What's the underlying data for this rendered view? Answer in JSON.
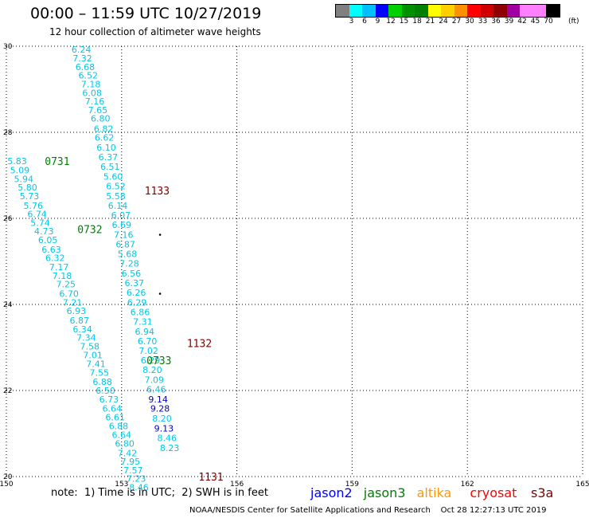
{
  "title": "00:00 – 11:59 UTC 10/27/2019",
  "subtitle": "12 hour collection of altimeter wave heights",
  "colorbar": {
    "labels": [
      "3",
      "6",
      "9",
      "12",
      "15",
      "18",
      "21",
      "24",
      "27",
      "30",
      "33",
      "36",
      "39",
      "42",
      "45",
      "70"
    ],
    "unit": "(ft)",
    "colors": [
      "#808080",
      "#00ffff",
      "#00c0ff",
      "#0000ff",
      "#00d000",
      "#009000",
      "#008000",
      "#ffff00",
      "#ffd000",
      "#ff9000",
      "#ff0000",
      "#d00000",
      "#900000",
      "#a000a0",
      "#ff80ff",
      "#ff80ff",
      "#000000"
    ]
  },
  "map": {
    "lon_min": 150,
    "lon_max": 165,
    "lat_min": 20,
    "lat_max": 30,
    "lon_ticks": [
      150,
      153,
      156,
      159,
      162,
      165
    ],
    "lat_ticks": [
      20,
      22,
      24,
      26,
      28,
      30
    ]
  },
  "tracks": [
    {
      "satellite": "jason3",
      "pass_label": "0731",
      "label_lon": 151.0,
      "label_lat": 27.33,
      "color": "#008000"
    },
    {
      "satellite": "jason3",
      "pass_label": "0732",
      "label_lon": 151.85,
      "label_lat": 25.75,
      "color": "#008000"
    },
    {
      "satellite": "jason3",
      "pass_label": "0733",
      "label_lon": 153.65,
      "label_lat": 22.7,
      "color": "#008000"
    },
    {
      "satellite": "cryosat",
      "pass_label": "1133",
      "label_lon": 153.6,
      "label_lat": 26.65,
      "color": "#800000"
    },
    {
      "satellite": "cryosat",
      "pass_label": "1132",
      "label_lon": 154.7,
      "label_lat": 23.1,
      "color": "#800000"
    },
    {
      "satellite": "cryosat",
      "pass_label": "1131",
      "label_lon": 155.0,
      "label_lat": 20.0,
      "color": "#800000"
    }
  ],
  "swh_obs": [
    {
      "v": "6.24",
      "lon": 151.95,
      "lat": 29.93,
      "c": "#00c8e6"
    },
    {
      "v": "7.32",
      "lon": 151.98,
      "lat": 29.72,
      "c": "#00c8e6"
    },
    {
      "v": "6.68",
      "lon": 152.05,
      "lat": 29.52,
      "c": "#00c8e6"
    },
    {
      "v": "6.52",
      "lon": 152.13,
      "lat": 29.32,
      "c": "#00c8e6"
    },
    {
      "v": "7.18",
      "lon": 152.2,
      "lat": 29.12,
      "c": "#00c8e6"
    },
    {
      "v": "6.08",
      "lon": 152.23,
      "lat": 28.92,
      "c": "#00c8e6"
    },
    {
      "v": "7.16",
      "lon": 152.3,
      "lat": 28.72,
      "c": "#00c8e6"
    },
    {
      "v": "7.65",
      "lon": 152.38,
      "lat": 28.52,
      "c": "#00c8e6"
    },
    {
      "v": "6.80",
      "lon": 152.45,
      "lat": 28.32,
      "c": "#00c8e6"
    },
    {
      "v": "6.82",
      "lon": 152.53,
      "lat": 28.08,
      "c": "#00c8e6"
    },
    {
      "v": "6.62",
      "lon": 152.55,
      "lat": 27.88,
      "c": "#00c8e6"
    },
    {
      "v": "6.10",
      "lon": 152.6,
      "lat": 27.65,
      "c": "#00c8e6"
    },
    {
      "v": "6.37",
      "lon": 152.65,
      "lat": 27.43,
      "c": "#00c8e6"
    },
    {
      "v": "6.51",
      "lon": 152.7,
      "lat": 27.2,
      "c": "#00c8e6"
    },
    {
      "v": "5.60",
      "lon": 152.78,
      "lat": 26.97,
      "c": "#00c8e6"
    },
    {
      "v": "6.52",
      "lon": 152.85,
      "lat": 26.75,
      "c": "#00c8e6"
    },
    {
      "v": "5.58",
      "lon": 152.85,
      "lat": 26.52,
      "c": "#00c8e6"
    },
    {
      "v": "6.14",
      "lon": 152.9,
      "lat": 26.3,
      "c": "#00c8e6"
    },
    {
      "v": "6.07",
      "lon": 152.98,
      "lat": 26.07,
      "c": "#00c8e6"
    },
    {
      "v": "6.69",
      "lon": 153.0,
      "lat": 25.85,
      "c": "#00c8e6"
    },
    {
      "v": "7.16",
      "lon": 153.05,
      "lat": 25.62,
      "c": "#00c8e6"
    },
    {
      "v": "6.87",
      "lon": 153.1,
      "lat": 25.4,
      "c": "#00c8e6"
    },
    {
      "v": "5.68",
      "lon": 153.15,
      "lat": 25.18,
      "c": "#00c8e6"
    },
    {
      "v": "7.28",
      "lon": 153.2,
      "lat": 24.95,
      "c": "#00c8e6"
    },
    {
      "v": "6.56",
      "lon": 153.25,
      "lat": 24.72,
      "c": "#00c8e6"
    },
    {
      "v": "6.37",
      "lon": 153.33,
      "lat": 24.5,
      "c": "#00c8e6"
    },
    {
      "v": "6.26",
      "lon": 153.38,
      "lat": 24.28,
      "c": "#00c8e6"
    },
    {
      "v": "6.29",
      "lon": 153.4,
      "lat": 24.05,
      "c": "#00c8e6"
    },
    {
      "v": "6.86",
      "lon": 153.48,
      "lat": 23.82,
      "c": "#00c8e6"
    },
    {
      "v": "7.31",
      "lon": 153.55,
      "lat": 23.6,
      "c": "#00c8e6"
    },
    {
      "v": "6.94",
      "lon": 153.6,
      "lat": 23.37,
      "c": "#00c8e6"
    },
    {
      "v": "6.70",
      "lon": 153.67,
      "lat": 23.15,
      "c": "#00c8e6"
    },
    {
      "v": "7.02",
      "lon": 153.7,
      "lat": 22.93,
      "c": "#00c8e6"
    },
    {
      "v": "6.29",
      "lon": 153.75,
      "lat": 22.7,
      "c": "#00c8e6"
    },
    {
      "v": "8.20",
      "lon": 153.8,
      "lat": 22.48,
      "c": "#00c8e6"
    },
    {
      "v": "7.09",
      "lon": 153.85,
      "lat": 22.25,
      "c": "#00c8e6"
    },
    {
      "v": "6.46",
      "lon": 153.9,
      "lat": 22.03,
      "c": "#00c8e6"
    },
    {
      "v": "9.14",
      "lon": 153.95,
      "lat": 21.8,
      "c": "#0000c8"
    },
    {
      "v": "9.28",
      "lon": 154.0,
      "lat": 21.58,
      "c": "#0000c8"
    },
    {
      "v": "8.20",
      "lon": 154.05,
      "lat": 21.35,
      "c": "#00c8e6"
    },
    {
      "v": "9.13",
      "lon": 154.1,
      "lat": 21.12,
      "c": "#0000c8"
    },
    {
      "v": "8.46",
      "lon": 154.18,
      "lat": 20.9,
      "c": "#00c8e6"
    },
    {
      "v": "8.23",
      "lon": 154.25,
      "lat": 20.67,
      "c": "#00c8e6"
    },
    {
      "v": "5.83",
      "lon": 150.28,
      "lat": 27.33,
      "c": "#00c8e6"
    },
    {
      "v": "5.09",
      "lon": 150.35,
      "lat": 27.12,
      "c": "#00c8e6"
    },
    {
      "v": "5.94",
      "lon": 150.45,
      "lat": 26.92,
      "c": "#00c8e6"
    },
    {
      "v": "5.80",
      "lon": 150.55,
      "lat": 26.72,
      "c": "#00c8e6"
    },
    {
      "v": "5.73",
      "lon": 150.6,
      "lat": 26.52,
      "c": "#00c8e6"
    },
    {
      "v": "5.76",
      "lon": 150.7,
      "lat": 26.3,
      "c": "#00c8e6"
    },
    {
      "v": "6.74",
      "lon": 150.8,
      "lat": 26.1,
      "c": "#00c8e6"
    },
    {
      "v": "5.74",
      "lon": 150.88,
      "lat": 25.9,
      "c": "#00c8e6"
    },
    {
      "v": "4.73",
      "lon": 150.98,
      "lat": 25.7,
      "c": "#00c8e6"
    },
    {
      "v": "6.05",
      "lon": 151.08,
      "lat": 25.5,
      "c": "#00c8e6"
    },
    {
      "v": "6.63",
      "lon": 151.17,
      "lat": 25.28,
      "c": "#00c8e6"
    },
    {
      "v": "6.32",
      "lon": 151.27,
      "lat": 25.08,
      "c": "#00c8e6"
    },
    {
      "v": "7.17",
      "lon": 151.37,
      "lat": 24.87,
      "c": "#00c8e6"
    },
    {
      "v": "7.18",
      "lon": 151.45,
      "lat": 24.67,
      "c": "#00c8e6"
    },
    {
      "v": "7.25",
      "lon": 151.55,
      "lat": 24.47,
      "c": "#00c8e6"
    },
    {
      "v": "6.70",
      "lon": 151.63,
      "lat": 24.25,
      "c": "#00c8e6"
    },
    {
      "v": "7.21",
      "lon": 151.72,
      "lat": 24.05,
      "c": "#00c8e6"
    },
    {
      "v": "6.93",
      "lon": 151.82,
      "lat": 23.85,
      "c": "#00c8e6"
    },
    {
      "v": "6.87",
      "lon": 151.9,
      "lat": 23.63,
      "c": "#00c8e6"
    },
    {
      "v": "6.34",
      "lon": 151.98,
      "lat": 23.43,
      "c": "#00c8e6"
    },
    {
      "v": "7.34",
      "lon": 152.08,
      "lat": 23.23,
      "c": "#00c8e6"
    },
    {
      "v": "7.58",
      "lon": 152.17,
      "lat": 23.03,
      "c": "#00c8e6"
    },
    {
      "v": "7.01",
      "lon": 152.25,
      "lat": 22.82,
      "c": "#00c8e6"
    },
    {
      "v": "7.41",
      "lon": 152.33,
      "lat": 22.62,
      "c": "#00c8e6"
    },
    {
      "v": "7.55",
      "lon": 152.42,
      "lat": 22.42,
      "c": "#00c8e6"
    },
    {
      "v": "6.88",
      "lon": 152.5,
      "lat": 22.2,
      "c": "#00c8e6"
    },
    {
      "v": "6.50",
      "lon": 152.58,
      "lat": 22.0,
      "c": "#00c8e6"
    },
    {
      "v": "6.73",
      "lon": 152.67,
      "lat": 21.8,
      "c": "#00c8e6"
    },
    {
      "v": "6.64",
      "lon": 152.75,
      "lat": 21.58,
      "c": "#00c8e6"
    },
    {
      "v": "6.61",
      "lon": 152.83,
      "lat": 21.38,
      "c": "#00c8e6"
    },
    {
      "v": "6.88",
      "lon": 152.92,
      "lat": 21.18,
      "c": "#00c8e6"
    },
    {
      "v": "6.64",
      "lon": 153.0,
      "lat": 20.97,
      "c": "#00c8e6"
    },
    {
      "v": "6.80",
      "lon": 153.08,
      "lat": 20.77,
      "c": "#00c8e6"
    },
    {
      "v": "7.42",
      "lon": 153.15,
      "lat": 20.55,
      "c": "#00c8e6"
    },
    {
      "v": "7.95",
      "lon": 153.23,
      "lat": 20.35,
      "c": "#00c8e6"
    },
    {
      "v": "7.57",
      "lon": 153.3,
      "lat": 20.15,
      "c": "#00c8e6"
    },
    {
      "v": "7.23",
      "lon": 153.38,
      "lat": 19.95,
      "c": "#00c8e6"
    },
    {
      "v": "8.46",
      "lon": 153.45,
      "lat": 19.75,
      "c": "#00c8e6"
    }
  ],
  "dots": [
    {
      "lon": 154.0,
      "lat": 25.62
    },
    {
      "lon": 154.0,
      "lat": 24.25
    }
  ],
  "note": "note:  1) Time is in UTC;  2) SWH is in feet",
  "legend": [
    {
      "name": "jason2",
      "color": "#0000ff"
    },
    {
      "name": "jason3",
      "color": "#008000"
    },
    {
      "name": "altika",
      "color": "#ff9900"
    },
    {
      "name": "cryosat",
      "color": "#ff0000"
    },
    {
      "name": "s3a",
      "color": "#800000"
    }
  ],
  "credit": "NOAA/NESDIS Center for Satellite Applications and Research    Oct 28 12:27:13 UTC 2019"
}
